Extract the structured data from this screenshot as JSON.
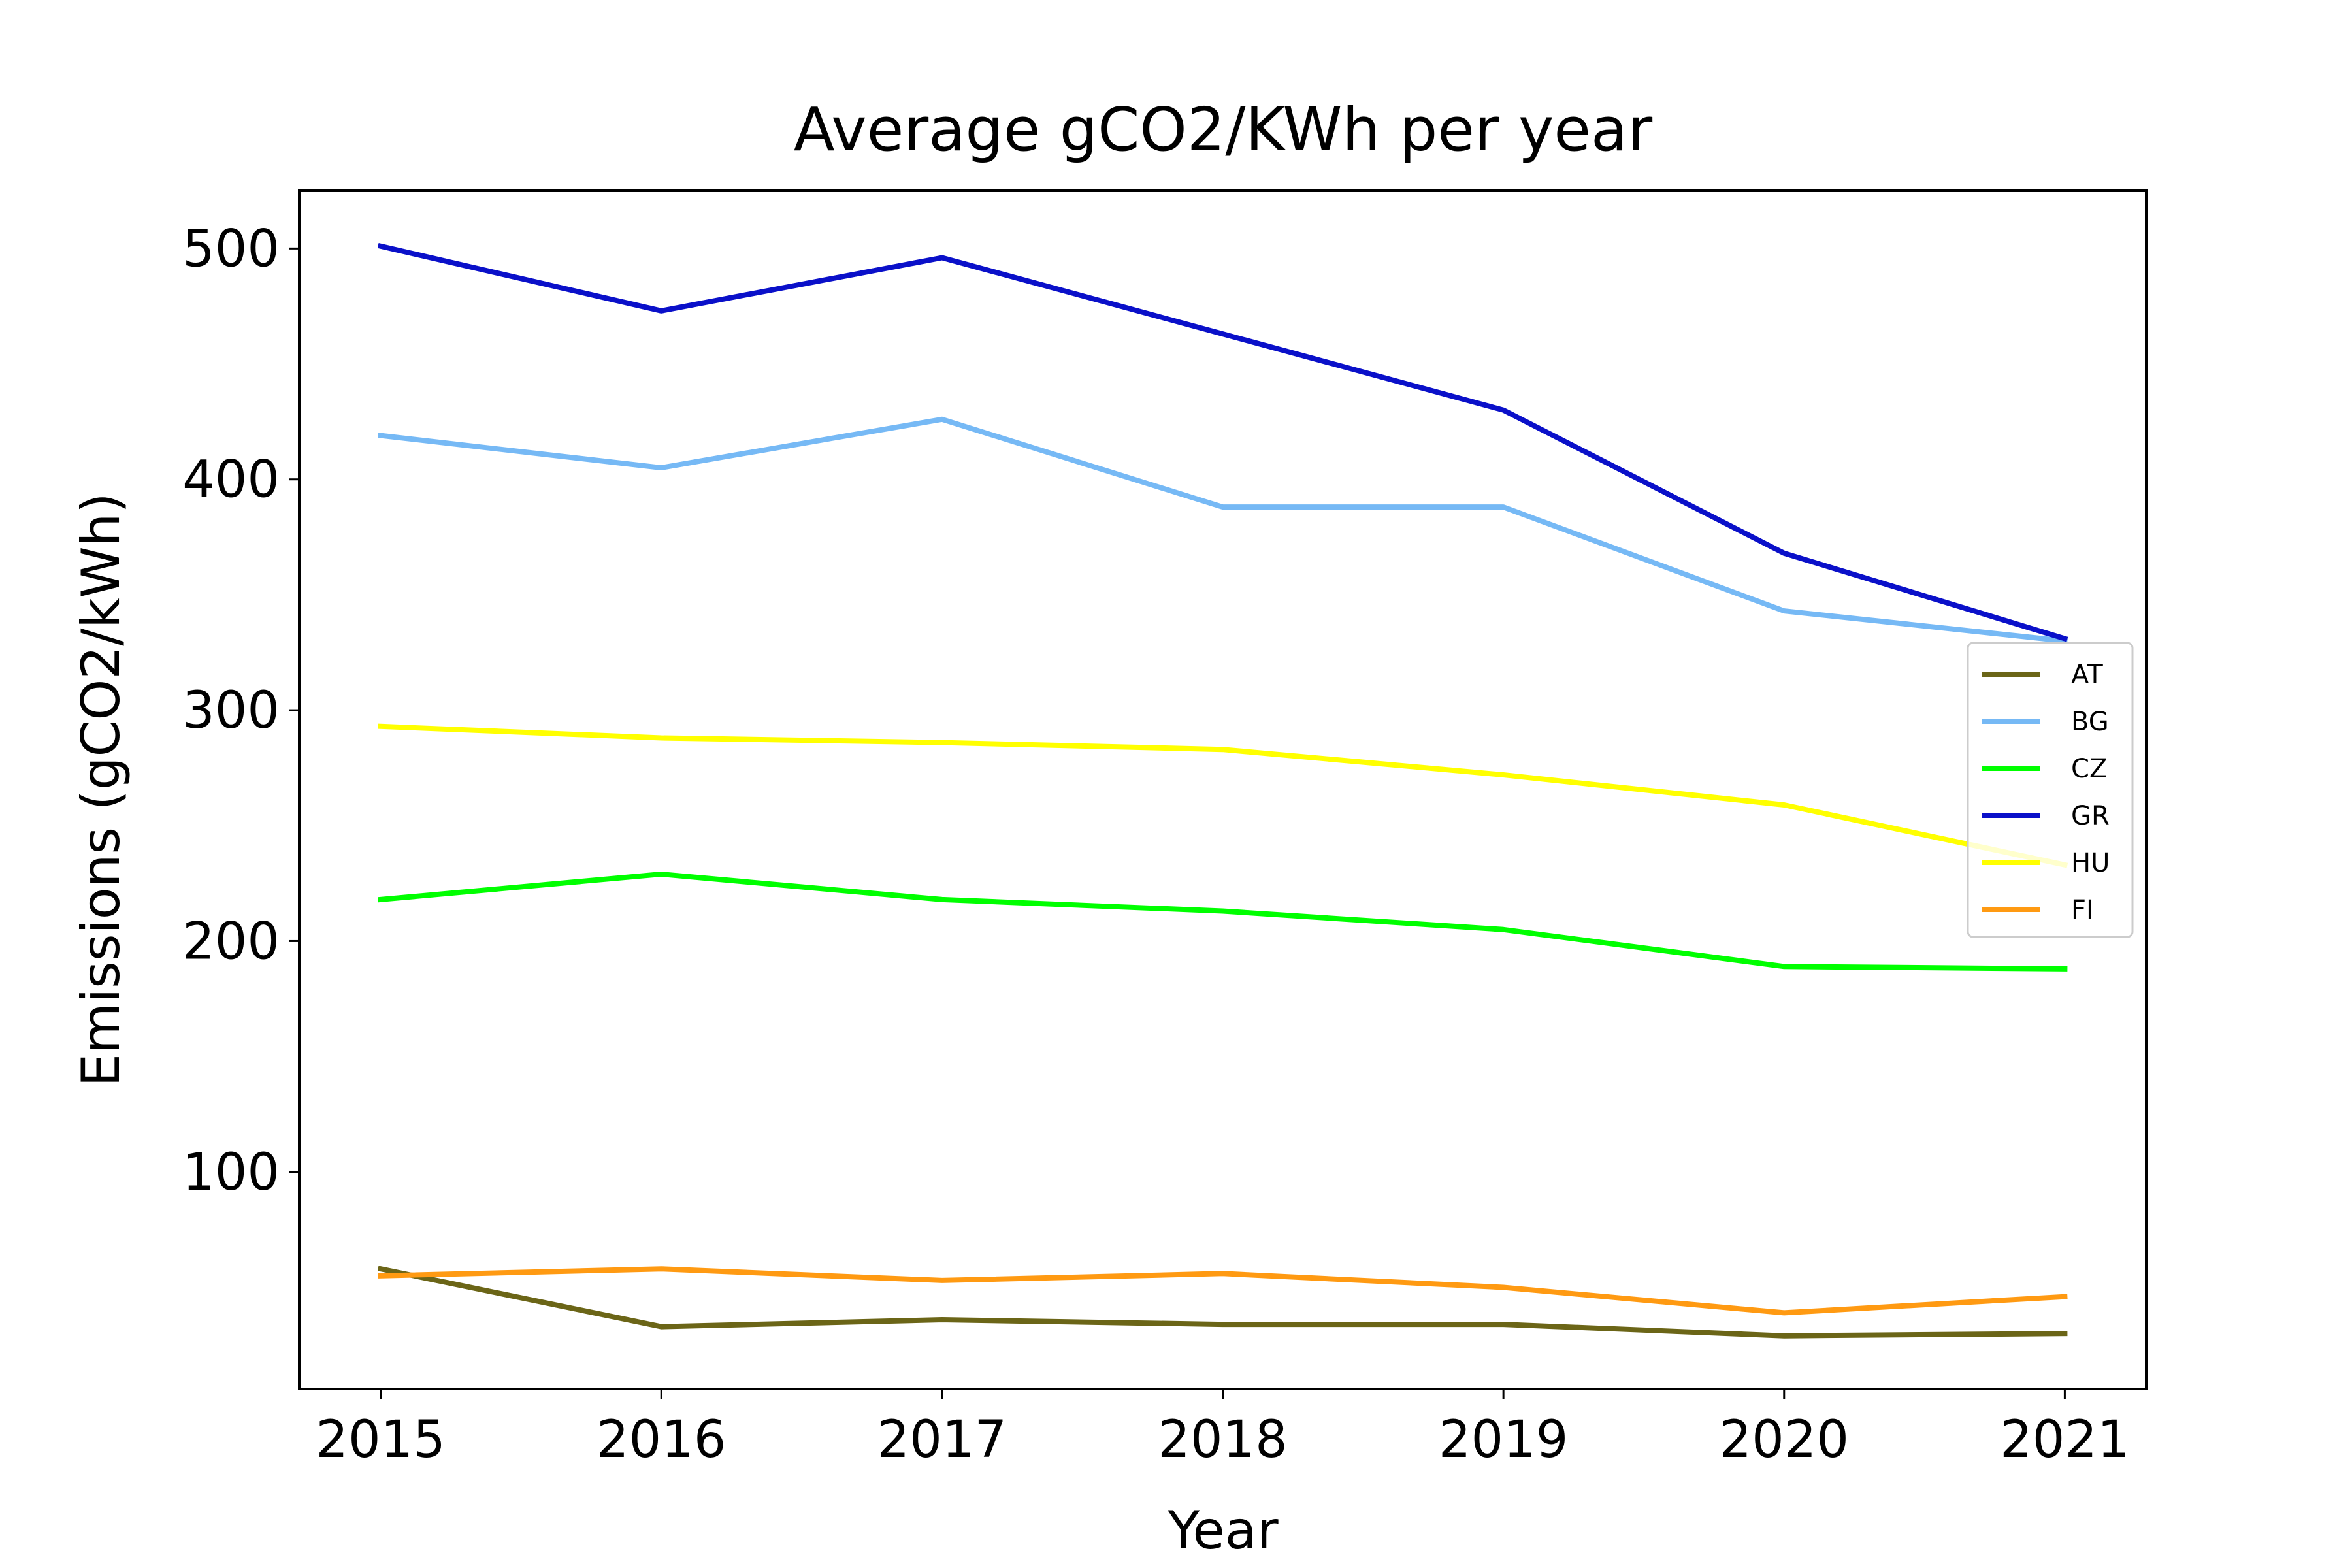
{
  "chart_data": {
    "type": "line",
    "title": "Average gCO2/KWh per year",
    "xlabel": "Year",
    "ylabel": "Emissions (gCO2/kWh)",
    "x": [
      2015,
      2016,
      2017,
      2018,
      2019,
      2020,
      2021
    ],
    "x_tick_labels": [
      "2015",
      "2016",
      "2017",
      "2018",
      "2019",
      "2020",
      "2021"
    ],
    "y_ticks": [
      100,
      200,
      300,
      400,
      500
    ],
    "y_tick_labels": [
      "100",
      "200",
      "300",
      "400",
      "500"
    ],
    "xlim": [
      2014.71,
      2021.29
    ],
    "ylim": [
      6,
      525
    ],
    "grid": false,
    "legend_position": "center-right",
    "series": [
      {
        "name": "AT",
        "color": "#6b6517",
        "values": [
          58,
          33,
          36,
          34,
          34,
          29,
          30
        ]
      },
      {
        "name": "BG",
        "color": "#76b9f5",
        "values": [
          419,
          405,
          426,
          388,
          388,
          343,
          330
        ]
      },
      {
        "name": "CZ",
        "color": "#00ff00",
        "values": [
          218,
          229,
          218,
          213,
          205,
          189,
          188
        ]
      },
      {
        "name": "GR",
        "color": "#0a10c9",
        "values": [
          501,
          473,
          496,
          463,
          430,
          368,
          331
        ]
      },
      {
        "name": "HU",
        "color": "#ffff00",
        "values": [
          293,
          288,
          286,
          283,
          272,
          259,
          233
        ]
      },
      {
        "name": "FI",
        "color": "#ff9a12",
        "values": [
          55,
          58,
          53,
          56,
          50,
          39,
          46
        ]
      }
    ]
  }
}
